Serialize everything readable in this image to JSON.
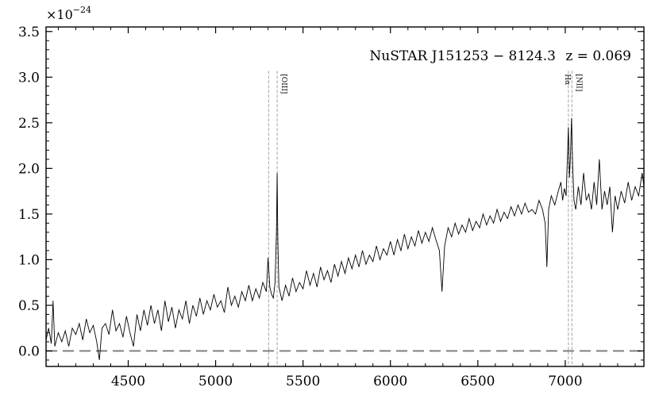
{
  "chart_data": {
    "type": "line",
    "multiplier_label": "×10",
    "multiplier_exponent": "−24",
    "annotation": {
      "source": "NuSTAR J151253 − 8124.3",
      "redshift": "z = 0.069"
    },
    "xlim": [
      4030,
      7450
    ],
    "ylim": [
      -0.17,
      3.55
    ],
    "x_ticks": [
      4500,
      5000,
      5500,
      6000,
      6500,
      7000
    ],
    "y_ticks": [
      0.0,
      0.5,
      1.0,
      1.5,
      2.0,
      2.5,
      3.0,
      3.5
    ],
    "y_tick_labels": [
      "0.0",
      "0.5",
      "1.0",
      "1.5",
      "2.0",
      "2.5",
      "3.0",
      "3.5"
    ],
    "zero_line": 0.0,
    "emission_lines": [
      {
        "label": "",
        "x": 5303
      },
      {
        "label": "[OIII]",
        "x": 5352
      },
      {
        "label": "Hα",
        "x": 7018
      },
      {
        "label": "[NII]",
        "x": 7038
      }
    ],
    "line_top": 3.07,
    "series": [
      {
        "color": "#000000",
        "points": [
          [
            4030,
            0.12
          ],
          [
            4045,
            0.25
          ],
          [
            4060,
            0.08
          ],
          [
            4070,
            0.55
          ],
          [
            4080,
            0.05
          ],
          [
            4100,
            0.2
          ],
          [
            4120,
            0.1
          ],
          [
            4140,
            0.22
          ],
          [
            4160,
            0.05
          ],
          [
            4180,
            0.25
          ],
          [
            4200,
            0.18
          ],
          [
            4220,
            0.3
          ],
          [
            4240,
            0.12
          ],
          [
            4260,
            0.35
          ],
          [
            4280,
            0.2
          ],
          [
            4300,
            0.28
          ],
          [
            4320,
            0.1
          ],
          [
            4335,
            -0.1
          ],
          [
            4350,
            0.25
          ],
          [
            4370,
            0.3
          ],
          [
            4390,
            0.18
          ],
          [
            4410,
            0.45
          ],
          [
            4430,
            0.22
          ],
          [
            4450,
            0.3
          ],
          [
            4470,
            0.15
          ],
          [
            4490,
            0.38
          ],
          [
            4510,
            0.2
          ],
          [
            4530,
            0.05
          ],
          [
            4550,
            0.4
          ],
          [
            4570,
            0.22
          ],
          [
            4590,
            0.45
          ],
          [
            4610,
            0.28
          ],
          [
            4630,
            0.5
          ],
          [
            4650,
            0.3
          ],
          [
            4670,
            0.45
          ],
          [
            4690,
            0.22
          ],
          [
            4710,
            0.55
          ],
          [
            4730,
            0.32
          ],
          [
            4750,
            0.48
          ],
          [
            4770,
            0.25
          ],
          [
            4790,
            0.45
          ],
          [
            4810,
            0.35
          ],
          [
            4830,
            0.55
          ],
          [
            4850,
            0.3
          ],
          [
            4870,
            0.5
          ],
          [
            4890,
            0.38
          ],
          [
            4910,
            0.58
          ],
          [
            4930,
            0.4
          ],
          [
            4950,
            0.55
          ],
          [
            4970,
            0.45
          ],
          [
            4990,
            0.62
          ],
          [
            5010,
            0.48
          ],
          [
            5030,
            0.55
          ],
          [
            5050,
            0.42
          ],
          [
            5070,
            0.7
          ],
          [
            5090,
            0.5
          ],
          [
            5110,
            0.6
          ],
          [
            5130,
            0.48
          ],
          [
            5150,
            0.65
          ],
          [
            5170,
            0.55
          ],
          [
            5190,
            0.72
          ],
          [
            5210,
            0.55
          ],
          [
            5230,
            0.68
          ],
          [
            5250,
            0.58
          ],
          [
            5270,
            0.75
          ],
          [
            5290,
            0.65
          ],
          [
            5300,
            1.02
          ],
          [
            5310,
            0.7
          ],
          [
            5320,
            0.62
          ],
          [
            5330,
            0.58
          ],
          [
            5340,
            0.75
          ],
          [
            5348,
            1.3
          ],
          [
            5352,
            1.95
          ],
          [
            5356,
            1.2
          ],
          [
            5362,
            0.7
          ],
          [
            5380,
            0.55
          ],
          [
            5400,
            0.72
          ],
          [
            5420,
            0.6
          ],
          [
            5440,
            0.8
          ],
          [
            5460,
            0.65
          ],
          [
            5480,
            0.75
          ],
          [
            5500,
            0.68
          ],
          [
            5520,
            0.88
          ],
          [
            5540,
            0.72
          ],
          [
            5560,
            0.85
          ],
          [
            5580,
            0.7
          ],
          [
            5600,
            0.92
          ],
          [
            5620,
            0.78
          ],
          [
            5640,
            0.88
          ],
          [
            5660,
            0.75
          ],
          [
            5680,
            0.95
          ],
          [
            5700,
            0.82
          ],
          [
            5720,
            0.98
          ],
          [
            5740,
            0.85
          ],
          [
            5760,
            1.02
          ],
          [
            5780,
            0.9
          ],
          [
            5800,
            1.05
          ],
          [
            5820,
            0.92
          ],
          [
            5840,
            1.1
          ],
          [
            5860,
            0.95
          ],
          [
            5880,
            1.05
          ],
          [
            5900,
            0.98
          ],
          [
            5920,
            1.15
          ],
          [
            5940,
            1.0
          ],
          [
            5960,
            1.12
          ],
          [
            5980,
            1.05
          ],
          [
            6000,
            1.2
          ],
          [
            6020,
            1.05
          ],
          [
            6040,
            1.22
          ],
          [
            6060,
            1.1
          ],
          [
            6080,
            1.28
          ],
          [
            6100,
            1.12
          ],
          [
            6120,
            1.25
          ],
          [
            6140,
            1.15
          ],
          [
            6160,
            1.32
          ],
          [
            6180,
            1.18
          ],
          [
            6200,
            1.3
          ],
          [
            6220,
            1.2
          ],
          [
            6240,
            1.35
          ],
          [
            6260,
            1.22
          ],
          [
            6280,
            1.1
          ],
          [
            6295,
            0.65
          ],
          [
            6310,
            1.15
          ],
          [
            6330,
            1.35
          ],
          [
            6350,
            1.25
          ],
          [
            6370,
            1.4
          ],
          [
            6390,
            1.28
          ],
          [
            6410,
            1.38
          ],
          [
            6430,
            1.3
          ],
          [
            6450,
            1.45
          ],
          [
            6470,
            1.32
          ],
          [
            6490,
            1.42
          ],
          [
            6510,
            1.35
          ],
          [
            6530,
            1.5
          ],
          [
            6550,
            1.38
          ],
          [
            6570,
            1.48
          ],
          [
            6590,
            1.4
          ],
          [
            6610,
            1.55
          ],
          [
            6630,
            1.42
          ],
          [
            6650,
            1.52
          ],
          [
            6670,
            1.45
          ],
          [
            6690,
            1.58
          ],
          [
            6710,
            1.48
          ],
          [
            6730,
            1.6
          ],
          [
            6750,
            1.5
          ],
          [
            6770,
            1.62
          ],
          [
            6790,
            1.52
          ],
          [
            6810,
            1.55
          ],
          [
            6830,
            1.5
          ],
          [
            6850,
            1.65
          ],
          [
            6870,
            1.55
          ],
          [
            6885,
            1.4
          ],
          [
            6895,
            0.92
          ],
          [
            6905,
            1.55
          ],
          [
            6920,
            1.7
          ],
          [
            6940,
            1.6
          ],
          [
            6960,
            1.75
          ],
          [
            6975,
            1.85
          ],
          [
            6985,
            1.65
          ],
          [
            6995,
            1.78
          ],
          [
            7005,
            1.7
          ],
          [
            7012,
            2.1
          ],
          [
            7018,
            2.45
          ],
          [
            7024,
            1.9
          ],
          [
            7030,
            2.15
          ],
          [
            7036,
            2.55
          ],
          [
            7042,
            2.05
          ],
          [
            7050,
            1.65
          ],
          [
            7060,
            1.55
          ],
          [
            7075,
            1.8
          ],
          [
            7090,
            1.6
          ],
          [
            7105,
            1.95
          ],
          [
            7120,
            1.65
          ],
          [
            7135,
            1.72
          ],
          [
            7150,
            1.55
          ],
          [
            7165,
            1.85
          ],
          [
            7180,
            1.6
          ],
          [
            7195,
            2.1
          ],
          [
            7210,
            1.55
          ],
          [
            7225,
            1.75
          ],
          [
            7240,
            1.6
          ],
          [
            7255,
            1.8
          ],
          [
            7270,
            1.3
          ],
          [
            7285,
            1.7
          ],
          [
            7300,
            1.55
          ],
          [
            7320,
            1.75
          ],
          [
            7340,
            1.62
          ],
          [
            7360,
            1.85
          ],
          [
            7380,
            1.65
          ],
          [
            7400,
            1.8
          ],
          [
            7420,
            1.7
          ],
          [
            7440,
            1.95
          ],
          [
            7450,
            1.8
          ]
        ]
      }
    ]
  }
}
